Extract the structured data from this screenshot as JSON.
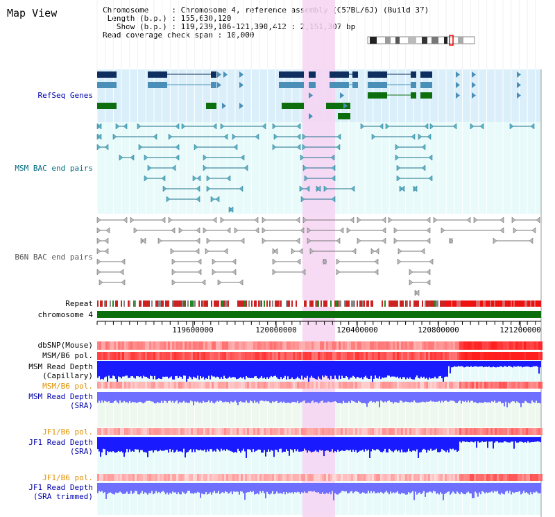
{
  "title": "Map View",
  "info": {
    "chromosome": "Chromosome     : Chromosome 4, reference assembly (C57BL/6J) (Build 37)",
    "length": " Length (b.p.) : 155,630,120",
    "show": "   Show (b.p.) : 119,239,106-121,390,412 : 2,151,307 bp",
    "coverage": "Read coverage check span : 10,000"
  },
  "tracks": {
    "refseq": "RefSeq Genes",
    "msm_bac": "MSM BAC end pairs",
    "b6n_bac": "B6N BAC end pairs",
    "repeat": "Repeat",
    "chromosome": "chromosome 4",
    "dbsnp": "dbSNP(Mouse)",
    "msm_b6_pol_1": "MSM/B6 pol.",
    "msm_depth_cap_1": "MSM Read Depth",
    "msm_depth_cap_2": "(Capillary)",
    "msm_b6_pol_2": "MSM/B6 pol.",
    "msm_depth_sra_1": "MSM Read Depth",
    "msm_depth_sra_2": "(SRA)",
    "jf1_pol_1": "JF1/B6 pol.",
    "jf1_depth_1": "JF1 Read Depth",
    "jf1_depth_2": "(SRA)",
    "jf1_pol_2": "JF1/B6 pol.",
    "jf1_trim_1": "JF1 Read Depth",
    "jf1_trim_2": "(SRA trimmed)"
  },
  "axis": {
    "ticks": [
      "119600000",
      "120000000",
      "120400000",
      "120800000",
      "121200000"
    ]
  },
  "colors": {
    "refseq_bg": "#dbeffa",
    "bac_bg": "#e8fafa",
    "highlight": "#f8d8f4",
    "refseq_dark": "#0d2e5e",
    "refseq_mid": "#4a8fb8",
    "refseq_green": "#0d6e0d",
    "msm_line": "#1b6f8a",
    "b6n_line": "#777777",
    "chrom_bar": "#0a6e0a",
    "depth_blue": "#1a1aff",
    "depth_light": "#6f6fff",
    "label_blue": "#0000aa",
    "label_teal": "#006a80",
    "label_orange": "#e09000"
  }
}
